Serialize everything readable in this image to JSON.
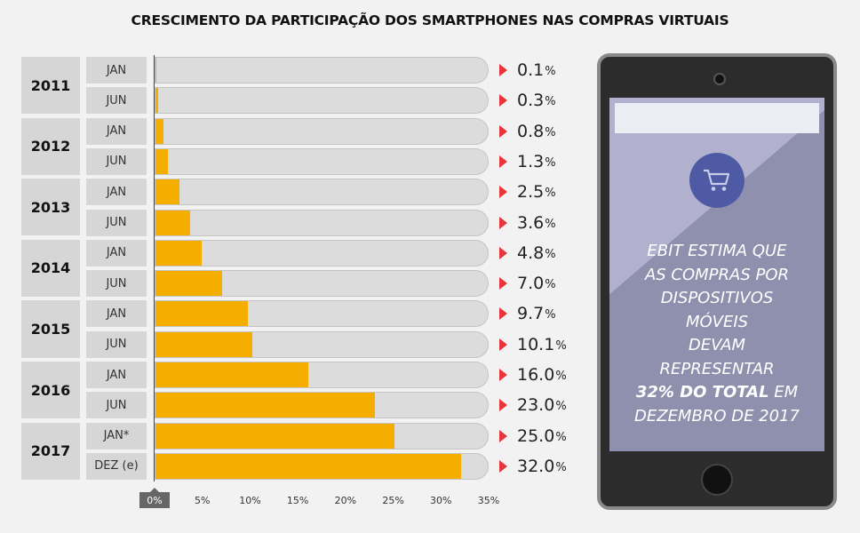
{
  "chart_data": {
    "type": "bar",
    "orientation": "horizontal",
    "title": "CRESCIMENTO DA PARTICIPAÇÃO DOS SMARTPHONES NAS COMPRAS VIRTUAIS",
    "groups": [
      {
        "year": "2011",
        "rows": [
          {
            "label": "JAN",
            "value": 0.1,
            "text": "0.1"
          },
          {
            "label": "JUN",
            "value": 0.3,
            "text": "0.3"
          }
        ]
      },
      {
        "year": "2012",
        "rows": [
          {
            "label": "JAN",
            "value": 0.8,
            "text": "0.8"
          },
          {
            "label": "JUN",
            "value": 1.3,
            "text": "1.3"
          }
        ]
      },
      {
        "year": "2013",
        "rows": [
          {
            "label": "JAN",
            "value": 2.5,
            "text": "2.5"
          },
          {
            "label": "JUN",
            "value": 3.6,
            "text": "3.6"
          }
        ]
      },
      {
        "year": "2014",
        "rows": [
          {
            "label": "JAN",
            "value": 4.8,
            "text": "4.8"
          },
          {
            "label": "JUN",
            "value": 7.0,
            "text": "7.0"
          }
        ]
      },
      {
        "year": "2015",
        "rows": [
          {
            "label": "JAN",
            "value": 9.7,
            "text": "9.7"
          },
          {
            "label": "JUN",
            "value": 10.1,
            "text": "10.1"
          }
        ]
      },
      {
        "year": "2016",
        "rows": [
          {
            "label": "JAN",
            "value": 16.0,
            "text": "16.0"
          },
          {
            "label": "JUN",
            "value": 23.0,
            "text": "23.0"
          }
        ]
      },
      {
        "year": "2017",
        "rows": [
          {
            "label": "JAN*",
            "value": 25.0,
            "text": "25.0"
          },
          {
            "label": "DEZ (e)",
            "value": 32.0,
            "text": "32.0"
          }
        ]
      }
    ],
    "unit": "%",
    "xlim": [
      0,
      35
    ],
    "xticks": [
      "0%",
      "5%",
      "10%",
      "15%",
      "20%",
      "25%",
      "30%",
      "35%"
    ],
    "colors": {
      "bar": "#f5ae00",
      "track": "#dcdcdc",
      "arrow": "#e8343b"
    }
  },
  "phone": {
    "line1": "EBIT ESTIMA QUE",
    "line2": "AS COMPRAS POR",
    "line3": "DISPOSITIVOS",
    "line4": "MÓVEIS",
    "line5": "DEVAM",
    "line6": "REPRESENTAR",
    "highlight": "32% DO TOTAL",
    "line7_after": " EM",
    "line8": "DEZEMBRO DE 2017",
    "icon": "shopping-cart-icon"
  }
}
